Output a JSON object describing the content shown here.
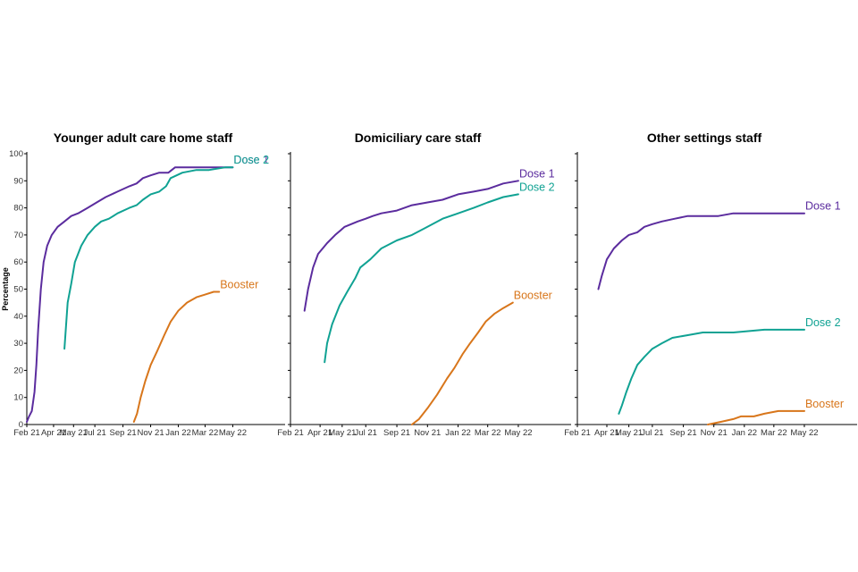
{
  "colors": {
    "Dose 1": "#5b2c9e",
    "Dose 2": "#10a293",
    "Booster": "#d8761b"
  },
  "chart_data": [
    {
      "type": "line",
      "title": "Younger adult care home staff",
      "ylabel": "Percentage",
      "ylim": [
        0,
        100
      ],
      "yticks": [
        0,
        10,
        20,
        30,
        40,
        50,
        60,
        70,
        80,
        90,
        100
      ],
      "x_tick_labels": [
        "Feb 21",
        "Apr 21",
        "May 21",
        "Jul 21",
        "Sep 21",
        "Nov 21",
        "Jan 22",
        "Mar 22",
        "May 22"
      ],
      "series": [
        {
          "name": "Dose 1",
          "points": [
            [
              "2021-02-01",
              1
            ],
            [
              "2021-02-06",
              3
            ],
            [
              "2021-02-12",
              5
            ],
            [
              "2021-02-18",
              12
            ],
            [
              "2021-02-22",
              22
            ],
            [
              "2021-02-26",
              35
            ],
            [
              "2021-03-04",
              50
            ],
            [
              "2021-03-10",
              60
            ],
            [
              "2021-03-18",
              66
            ],
            [
              "2021-03-28",
              70
            ],
            [
              "2021-04-10",
              73
            ],
            [
              "2021-04-25",
              75
            ],
            [
              "2021-05-10",
              77
            ],
            [
              "2021-05-25",
              78
            ],
            [
              "2021-06-15",
              80
            ],
            [
              "2021-07-05",
              82
            ],
            [
              "2021-07-25",
              84
            ],
            [
              "2021-08-20",
              86
            ],
            [
              "2021-09-15",
              88
            ],
            [
              "2021-10-01",
              89
            ],
            [
              "2021-10-15",
              91
            ],
            [
              "2021-11-01",
              92
            ],
            [
              "2021-11-20",
              93
            ],
            [
              "2021-12-10",
              93
            ],
            [
              "2021-12-25",
              95
            ],
            [
              "2022-01-20",
              95
            ],
            [
              "2022-02-20",
              95
            ],
            [
              "2022-03-20",
              95
            ],
            [
              "2022-04-15",
              95
            ],
            [
              "2022-05-01",
              95
            ]
          ]
        },
        {
          "name": "Dose 2",
          "points": [
            [
              "2021-04-25",
              28
            ],
            [
              "2021-05-02",
              45
            ],
            [
              "2021-05-10",
              52
            ],
            [
              "2021-05-18",
              60
            ],
            [
              "2021-06-01",
              66
            ],
            [
              "2021-06-15",
              70
            ],
            [
              "2021-07-01",
              73
            ],
            [
              "2021-07-15",
              75
            ],
            [
              "2021-08-01",
              76
            ],
            [
              "2021-08-20",
              78
            ],
            [
              "2021-09-15",
              80
            ],
            [
              "2021-10-01",
              81
            ],
            [
              "2021-10-15",
              83
            ],
            [
              "2021-11-01",
              85
            ],
            [
              "2021-11-20",
              86
            ],
            [
              "2021-12-05",
              88
            ],
            [
              "2021-12-15",
              91
            ],
            [
              "2022-01-10",
              93
            ],
            [
              "2022-02-10",
              94
            ],
            [
              "2022-03-10",
              94
            ],
            [
              "2022-04-15",
              95
            ],
            [
              "2022-05-01",
              95
            ]
          ]
        },
        {
          "name": "Booster",
          "points": [
            [
              "2021-09-25",
              1
            ],
            [
              "2021-10-02",
              4
            ],
            [
              "2021-10-10",
              10
            ],
            [
              "2021-10-20",
              16
            ],
            [
              "2021-11-01",
              22
            ],
            [
              "2021-11-15",
              27
            ],
            [
              "2021-12-01",
              33
            ],
            [
              "2021-12-15",
              38
            ],
            [
              "2022-01-01",
              42
            ],
            [
              "2022-01-20",
              45
            ],
            [
              "2022-02-10",
              47
            ],
            [
              "2022-03-01",
              48
            ],
            [
              "2022-03-20",
              49
            ],
            [
              "2022-04-01",
              49
            ]
          ]
        }
      ]
    },
    {
      "type": "line",
      "title": "Domiciliary care staff",
      "ylim": [
        0,
        100
      ],
      "x_tick_labels": [
        "Feb 21",
        "Apr 21",
        "May 21",
        "Jul 21",
        "Sep 21",
        "Nov 21",
        "Jan 22",
        "Mar 22",
        "May 22"
      ],
      "series": [
        {
          "name": "Dose 1",
          "points": [
            [
              "2021-03-01",
              42
            ],
            [
              "2021-03-08",
              50
            ],
            [
              "2021-03-18",
              58
            ],
            [
              "2021-03-28",
              63
            ],
            [
              "2021-04-15",
              67
            ],
            [
              "2021-05-01",
              70
            ],
            [
              "2021-05-20",
              73
            ],
            [
              "2021-06-15",
              75
            ],
            [
              "2021-07-01",
              76
            ],
            [
              "2021-07-15",
              77
            ],
            [
              "2021-08-01",
              78
            ],
            [
              "2021-09-01",
              79
            ],
            [
              "2021-10-01",
              81
            ],
            [
              "2021-11-01",
              82
            ],
            [
              "2021-12-01",
              83
            ],
            [
              "2022-01-01",
              85
            ],
            [
              "2022-02-01",
              86
            ],
            [
              "2022-03-01",
              87
            ],
            [
              "2022-04-01",
              89
            ],
            [
              "2022-05-01",
              90
            ]
          ]
        },
        {
          "name": "Dose 2",
          "points": [
            [
              "2021-04-10",
              23
            ],
            [
              "2021-04-15",
              30
            ],
            [
              "2021-04-25",
              37
            ],
            [
              "2021-05-10",
              44
            ],
            [
              "2021-05-25",
              49
            ],
            [
              "2021-06-10",
              54
            ],
            [
              "2021-06-20",
              58
            ],
            [
              "2021-07-10",
              61
            ],
            [
              "2021-08-01",
              65
            ],
            [
              "2021-09-01",
              68
            ],
            [
              "2021-10-01",
              70
            ],
            [
              "2021-11-01",
              73
            ],
            [
              "2021-12-01",
              76
            ],
            [
              "2022-01-01",
              78
            ],
            [
              "2022-02-01",
              80
            ],
            [
              "2022-03-01",
              82
            ],
            [
              "2022-04-01",
              84
            ],
            [
              "2022-05-01",
              85
            ]
          ]
        },
        {
          "name": "Booster",
          "points": [
            [
              "2021-10-01",
              0
            ],
            [
              "2021-10-15",
              2
            ],
            [
              "2021-11-01",
              6
            ],
            [
              "2021-11-20",
              11
            ],
            [
              "2021-12-10",
              17
            ],
            [
              "2021-12-25",
              21
            ],
            [
              "2022-01-10",
              26
            ],
            [
              "2022-01-25",
              30
            ],
            [
              "2022-02-10",
              34
            ],
            [
              "2022-02-25",
              38
            ],
            [
              "2022-03-15",
              41
            ],
            [
              "2022-04-01",
              43
            ],
            [
              "2022-04-20",
              45
            ]
          ]
        }
      ]
    },
    {
      "type": "line",
      "title": "Other settings staff",
      "ylim": [
        0,
        100
      ],
      "x_tick_labels": [
        "Feb 21",
        "Apr 21",
        "May 21",
        "Jul 21",
        "Sep 21",
        "Nov 21",
        "Jan 22",
        "Mar 22",
        "May 22"
      ],
      "series": [
        {
          "name": "Dose 1",
          "points": [
            [
              "2021-03-15",
              50
            ],
            [
              "2021-03-22",
              55
            ],
            [
              "2021-04-01",
              61
            ],
            [
              "2021-04-15",
              65
            ],
            [
              "2021-05-01",
              68
            ],
            [
              "2021-05-15",
              70
            ],
            [
              "2021-06-01",
              71
            ],
            [
              "2021-06-15",
              73
            ],
            [
              "2021-07-01",
              74
            ],
            [
              "2021-07-20",
              75
            ],
            [
              "2021-08-15",
              76
            ],
            [
              "2021-09-10",
              77
            ],
            [
              "2021-10-10",
              77
            ],
            [
              "2021-11-10",
              77
            ],
            [
              "2021-12-10",
              78
            ],
            [
              "2022-02-01",
              78
            ],
            [
              "2022-05-01",
              78
            ]
          ]
        },
        {
          "name": "Dose 2",
          "points": [
            [
              "2021-04-25",
              4
            ],
            [
              "2021-05-01",
              7
            ],
            [
              "2021-05-10",
              12
            ],
            [
              "2021-05-20",
              17
            ],
            [
              "2021-06-01",
              22
            ],
            [
              "2021-06-15",
              25
            ],
            [
              "2021-07-01",
              28
            ],
            [
              "2021-07-20",
              30
            ],
            [
              "2021-08-10",
              32
            ],
            [
              "2021-09-10",
              33
            ],
            [
              "2021-10-10",
              34
            ],
            [
              "2021-11-10",
              34
            ],
            [
              "2021-12-10",
              34
            ],
            [
              "2022-02-10",
              35
            ],
            [
              "2022-05-01",
              35
            ]
          ]
        },
        {
          "name": "Booster",
          "points": [
            [
              "2021-10-20",
              0
            ],
            [
              "2021-11-15",
              1
            ],
            [
              "2021-12-10",
              2
            ],
            [
              "2021-12-25",
              3
            ],
            [
              "2022-01-20",
              3
            ],
            [
              "2022-02-10",
              4
            ],
            [
              "2022-03-10",
              5
            ],
            [
              "2022-04-10",
              5
            ],
            [
              "2022-05-01",
              5
            ]
          ]
        }
      ]
    }
  ]
}
